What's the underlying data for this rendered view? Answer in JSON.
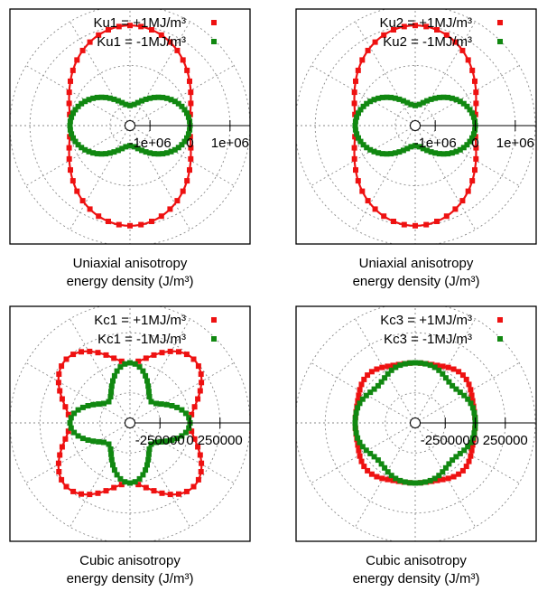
{
  "colors": {
    "positive": "#ee1111",
    "negative": "#118811",
    "frame": "#000000",
    "grid": "#888888"
  },
  "chart_data": [
    {
      "type": "scatter",
      "subtype": "polar",
      "kind": "uniaxial",
      "xlabel_line1": "Uniaxial anisotropy",
      "xlabel_line2": "energy density (J/m³)",
      "rlim": [
        -1500000,
        1500000
      ],
      "tick_labels": [
        "-1e+06",
        "0",
        "1e+06"
      ],
      "tick_values": [
        -1000000,
        0,
        1000000
      ],
      "legend_position": "top-right",
      "grid": true,
      "series": [
        {
          "name": "Ku1 = +1MJ/m³",
          "sign": 1,
          "color": "#ee1111",
          "points": 48,
          "energy_formula": "E(θ) = K·sin²θ",
          "max": 1000000,
          "min": 0
        },
        {
          "name": "Ku1 = -1MJ/m³",
          "sign": -1,
          "color": "#118811",
          "points": 72,
          "energy_formula": "E(θ) = K·sin²θ",
          "max": 0,
          "min": -1000000
        }
      ]
    },
    {
      "type": "scatter",
      "subtype": "polar",
      "kind": "uniaxial",
      "xlabel_line1": "Uniaxial anisotropy",
      "xlabel_line2": "energy density (J/m³)",
      "rlim": [
        -1500000,
        1500000
      ],
      "tick_labels": [
        "-1e+06",
        "0",
        "1e+06"
      ],
      "tick_values": [
        -1000000,
        0,
        1000000
      ],
      "legend_position": "top-right",
      "grid": true,
      "series": [
        {
          "name": "Ku2 = +1MJ/m³",
          "sign": 1,
          "color": "#ee1111",
          "points": 48,
          "energy_formula": "E(θ) = K·sin⁴θ",
          "max": 1000000,
          "min": 0
        },
        {
          "name": "Ku2 = -1MJ/m³",
          "sign": -1,
          "color": "#118811",
          "points": 72,
          "energy_formula": "E(θ) = K·sin⁴θ",
          "max": 0,
          "min": -1000000
        }
      ]
    },
    {
      "type": "scatter",
      "subtype": "polar",
      "kind": "cubic1",
      "xlabel_line1": "Cubic anisotropy",
      "xlabel_line2": "energy density (J/m³)",
      "rlim": [
        -500000,
        500000
      ],
      "tick_labels": [
        "-250000",
        "0",
        "250000"
      ],
      "tick_values": [
        -250000,
        0,
        250000
      ],
      "legend_position": "top-right",
      "grid": true,
      "series": [
        {
          "name": "Kc1 = +1MJ/m³",
          "sign": 1,
          "color": "#ee1111",
          "points": 64,
          "energy_formula": "E(θ) = K·sin²θ·cos²θ",
          "max": 250000,
          "min": 0
        },
        {
          "name": "Kc1 = -1MJ/m³",
          "sign": -1,
          "color": "#118811",
          "points": 72,
          "energy_formula": "E(θ) = K·sin²θ·cos²θ",
          "max": 0,
          "min": -250000
        }
      ]
    },
    {
      "type": "scatter",
      "subtype": "polar",
      "kind": "cubic3",
      "xlabel_line1": "Cubic anisotropy",
      "xlabel_line2": "energy density (J/m³)",
      "rlim": [
        -500000,
        500000
      ],
      "tick_labels": [
        "-250000",
        "0",
        "250000"
      ],
      "tick_values": [
        -250000,
        0,
        250000
      ],
      "legend_position": "top-right",
      "grid": true,
      "series": [
        {
          "name": "Kc3 = +1MJ/m³",
          "sign": 1,
          "color": "#ee1111",
          "points": 72,
          "energy_formula": "E(θ) = K·sin⁴θ·cos⁴θ",
          "max": 62500,
          "min": 0
        },
        {
          "name": "Kc3 = -1MJ/m³",
          "sign": -1,
          "color": "#118811",
          "points": 72,
          "energy_formula": "E(θ) = K·sin⁴θ·cos⁴θ",
          "max": 0,
          "min": -62500
        }
      ]
    }
  ]
}
